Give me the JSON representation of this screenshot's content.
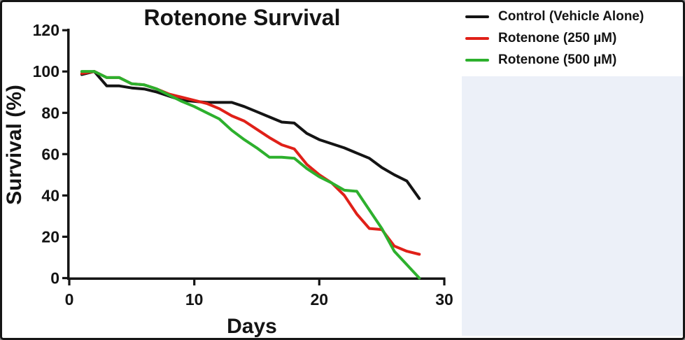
{
  "figure": {
    "background_color": "#ffffff",
    "border_color": "#161616",
    "side_panel_color": "#ecf0f8"
  },
  "chart_data": {
    "type": "line",
    "title": "Rotenone Survival",
    "xlabel": "Days",
    "ylabel": "Survival (%)",
    "xlim": [
      0,
      30
    ],
    "ylim": [
      0,
      120
    ],
    "xticks": [
      "0",
      "10",
      "20",
      "30"
    ],
    "yticks": [
      "0",
      "20",
      "40",
      "60",
      "80",
      "100",
      "120"
    ],
    "grid": false,
    "legend_position": "outside-top-right",
    "x": [
      1,
      2,
      3,
      4,
      5,
      6,
      7,
      8,
      9,
      10,
      11,
      12,
      13,
      14,
      15,
      16,
      17,
      18,
      19,
      20,
      21,
      22,
      23,
      24,
      25,
      26,
      27,
      28
    ],
    "series": [
      {
        "name": "Control (Vehicle Alone)",
        "color": "#141414",
        "values": [
          98.5,
          100,
          93,
          93,
          92,
          91.5,
          90,
          88,
          86,
          85.5,
          85,
          85,
          85,
          83,
          80.5,
          78,
          75.5,
          75,
          70,
          67,
          65,
          63,
          60.5,
          58,
          53.5,
          50,
          47,
          38.5
        ]
      },
      {
        "name": "Rotenone (250 µM)",
        "color": "#e02018",
        "values": [
          99,
          100,
          97,
          97,
          94,
          93.5,
          91.5,
          89,
          87.5,
          86,
          84.5,
          82,
          78.5,
          76,
          72,
          68,
          64.5,
          62.5,
          55,
          50,
          46,
          40,
          31,
          24,
          23.5,
          15.5,
          13,
          11.5
        ]
      },
      {
        "name": "Rotenone (500 µM)",
        "color": "#2db02d",
        "values": [
          100,
          100,
          97,
          97,
          94,
          93.5,
          91.5,
          88.5,
          85.5,
          83,
          80,
          77,
          71.5,
          67,
          63,
          58.5,
          58.5,
          58,
          53,
          49,
          46,
          42.5,
          42,
          33,
          24,
          13,
          6.5,
          0
        ]
      }
    ]
  }
}
